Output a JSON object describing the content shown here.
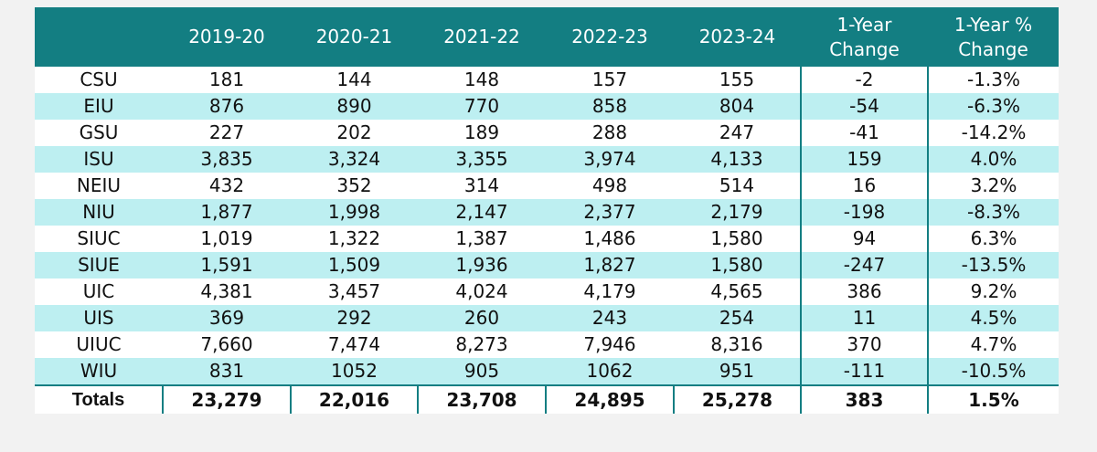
{
  "table": {
    "headers": [
      "",
      "2019-20",
      "2020-21",
      "2021-22",
      "2022-23",
      "2023-24",
      "1-Year Change",
      "1-Year % Change"
    ],
    "header_lines": [
      [
        ""
      ],
      [
        "2019-20"
      ],
      [
        "2020-21"
      ],
      [
        "2021-22"
      ],
      [
        "2022-23"
      ],
      [
        "2023-24"
      ],
      [
        "1-Year",
        "Change"
      ],
      [
        "1-Year %",
        "Change"
      ]
    ],
    "rows": [
      [
        "CSU",
        "181",
        "144",
        "148",
        "157",
        "155",
        "-2",
        "-1.3%"
      ],
      [
        "EIU",
        "876",
        "890",
        "770",
        "858",
        "804",
        "-54",
        "-6.3%"
      ],
      [
        "GSU",
        "227",
        "202",
        "189",
        "288",
        "247",
        "-41",
        "-14.2%"
      ],
      [
        "ISU",
        "3,835",
        "3,324",
        "3,355",
        "3,974",
        "4,133",
        "159",
        "4.0%"
      ],
      [
        "NEIU",
        "432",
        "352",
        "314",
        "498",
        "514",
        "16",
        "3.2%"
      ],
      [
        "NIU",
        "1,877",
        "1,998",
        "2,147",
        "2,377",
        "2,179",
        "-198",
        "-8.3%"
      ],
      [
        "SIUC",
        "1,019",
        "1,322",
        "1,387",
        "1,486",
        "1,580",
        "94",
        "6.3%"
      ],
      [
        "SIUE",
        "1,591",
        "1,509",
        "1,936",
        "1,827",
        "1,580",
        "-247",
        "-13.5%"
      ],
      [
        "UIC",
        "4,381",
        "3,457",
        "4,024",
        "4,179",
        "4,565",
        "386",
        "9.2%"
      ],
      [
        "UIS",
        "369",
        "292",
        "260",
        "243",
        "254",
        "11",
        "4.5%"
      ],
      [
        "UIUC",
        "7,660",
        "7,474",
        "8,273",
        "7,946",
        "8,316",
        "370",
        "4.7%"
      ],
      [
        "WIU",
        "831",
        "1052",
        "905",
        "1062",
        "951",
        "-111",
        "-10.5%"
      ]
    ],
    "totals": [
      "Totals",
      "23,279",
      "22,016",
      "23,708",
      "24,895",
      "25,278",
      "383",
      "1.5%"
    ]
  },
  "colors": {
    "header_bg": "#137e82",
    "header_text": "#ffffff",
    "stripe": "#bdeff1",
    "row": "#ffffff",
    "page_bg": "#f2f2f2"
  }
}
